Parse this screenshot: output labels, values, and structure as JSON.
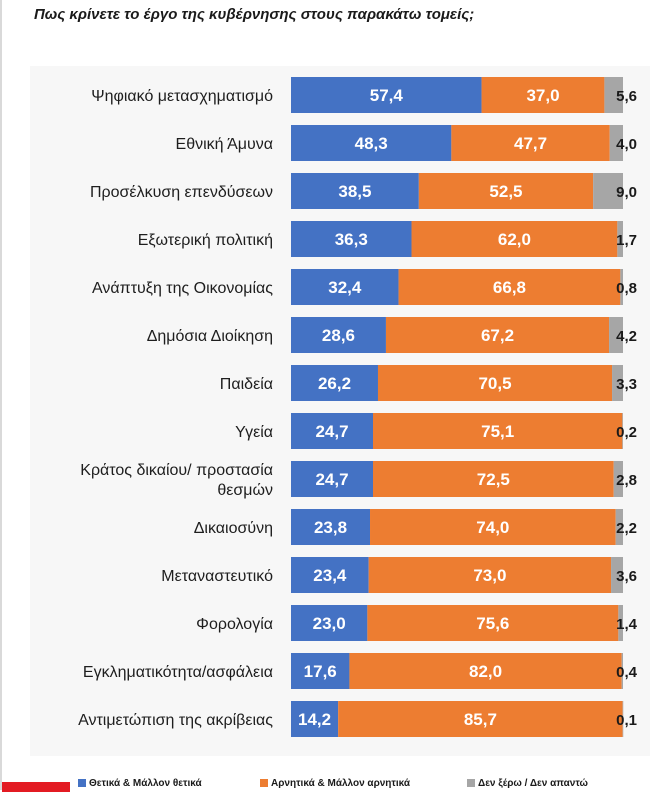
{
  "title": "Πως κρίνετε το έργο της κυβέρνησης στους παρακάτω τομείς;",
  "colors": {
    "positive": "#4472c4",
    "negative": "#ed7d31",
    "dontknow": "#a6a6a6",
    "logo": "#e31b23"
  },
  "chart_data": {
    "type": "bar",
    "orientation": "horizontal",
    "stacked": true,
    "xlim": [
      0,
      100
    ],
    "grid": false,
    "legend_position": "bottom",
    "categories": [
      [
        "Ψηφιακό μετασχηματισμό"
      ],
      [
        "Εθνική Άμυνα"
      ],
      [
        "Προσέλκυση επενδύσεων"
      ],
      [
        "Εξωτερική πολιτική"
      ],
      [
        "Ανάπτυξη της Οικονομίας"
      ],
      [
        "Δημόσια Διοίκηση"
      ],
      [
        "Παιδεία"
      ],
      [
        "Υγεία"
      ],
      [
        "Κράτος δικαίου/ προστασία",
        "θεσμών"
      ],
      [
        "Δικαιοσύνη"
      ],
      [
        "Μεταναστευτικό"
      ],
      [
        "Φορολογία"
      ],
      [
        "Εγκληματικότητα/ασφάλεια"
      ],
      [
        "Αντιμετώπιση της ακρίβειας"
      ]
    ],
    "series": [
      {
        "name": "Θετικά & Μάλλον θετικά",
        "values": [
          57.4,
          48.3,
          38.5,
          36.3,
          32.4,
          28.6,
          26.2,
          24.7,
          24.7,
          23.8,
          23.4,
          23.0,
          17.6,
          14.2
        ],
        "labels": [
          "57,4",
          "48,3",
          "38,5",
          "36,3",
          "32,4",
          "28,6",
          "26,2",
          "24,7",
          "24,7",
          "23,8",
          "23,4",
          "23,0",
          "17,6",
          "14,2"
        ]
      },
      {
        "name": "Αρνητικά & Μάλλον αρνητικά",
        "values": [
          37.0,
          47.7,
          52.5,
          62.0,
          66.8,
          67.2,
          70.5,
          75.1,
          72.5,
          74.0,
          73.0,
          75.6,
          82.0,
          85.7
        ],
        "labels": [
          "37,0",
          "47,7",
          "52,5",
          "62,0",
          "66,8",
          "67,2",
          "70,5",
          "75,1",
          "72,5",
          "74,0",
          "73,0",
          "75,6",
          "82,0",
          "85,7"
        ]
      },
      {
        "name": "Δεν ξέρω / Δεν απαντώ",
        "values": [
          5.6,
          4.0,
          9.0,
          1.7,
          0.8,
          4.2,
          3.3,
          0.2,
          2.8,
          2.2,
          3.6,
          1.4,
          0.4,
          0.1
        ],
        "labels": [
          "5,6",
          "4,0",
          "9,0",
          "1,7",
          "0,8",
          "4,2",
          "3,3",
          "0,2",
          "2,8",
          "2,2",
          "3,6",
          "1,4",
          "0,4",
          "0,1"
        ]
      }
    ]
  }
}
